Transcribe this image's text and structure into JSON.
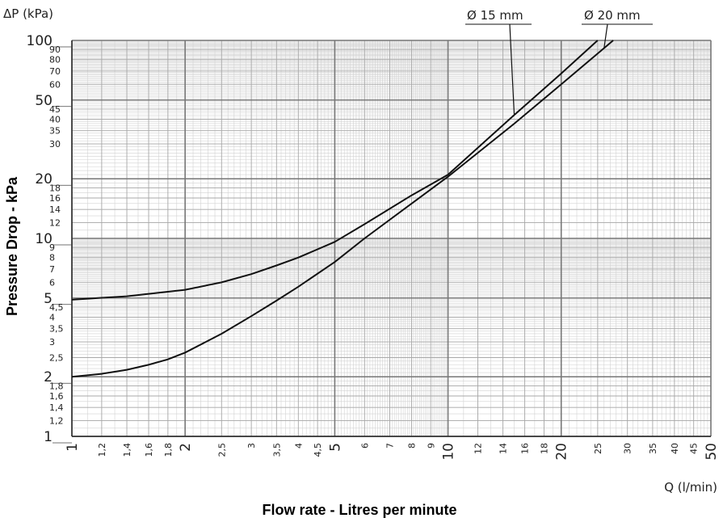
{
  "chart_data": {
    "type": "line",
    "x_scale": "log",
    "y_scale": "log",
    "xlim": [
      1,
      50
    ],
    "ylim": [
      1,
      100
    ],
    "grid": true,
    "x_unit_label": "Q (l/min)",
    "y_unit_label": "ΔP (kPa)",
    "xlabel": "Flow rate - Litres per minute",
    "ylabel": "Pressure Drop - kPa",
    "x_major_ticks": [
      "1",
      "2",
      "5",
      "10",
      "20",
      "50"
    ],
    "x_minor_ticks": [
      "1,2",
      "1,4",
      "1,6",
      "1,8",
      "2,5",
      "3",
      "3,5",
      "4",
      "4,5",
      "6",
      "7",
      "8",
      "9",
      "12",
      "14",
      "16",
      "18",
      "25",
      "30",
      "35",
      "40",
      "45"
    ],
    "y_major_ticks": [
      "1",
      "2",
      "5",
      "10",
      "20",
      "50",
      "100"
    ],
    "y_minor_ticks": [
      "1,2",
      "1,4",
      "1,6",
      "1,8",
      "2,5",
      "3",
      "3,5",
      "4",
      "4,5",
      "6",
      "7",
      "8",
      "9",
      "12",
      "14",
      "16",
      "18",
      "30",
      "35",
      "40",
      "45",
      "60",
      "70",
      "80",
      "90"
    ],
    "series": [
      {
        "name": "Ø 15 mm",
        "color": "#111111",
        "label_anchor_x": 15,
        "points": [
          [
            1,
            4.9
          ],
          [
            1.4,
            5.1
          ],
          [
            2,
            5.5
          ],
          [
            2.5,
            6.0
          ],
          [
            3,
            6.6
          ],
          [
            3.5,
            7.3
          ],
          [
            4,
            8.0
          ],
          [
            5,
            9.6
          ],
          [
            6,
            11.8
          ],
          [
            8,
            16.5
          ],
          [
            10,
            21.0
          ],
          [
            15,
            42
          ],
          [
            20,
            68
          ],
          [
            25,
            100
          ]
        ]
      },
      {
        "name": "Ø 20 mm",
        "color": "#111111",
        "label_anchor_x": 26,
        "points": [
          [
            1,
            2.0
          ],
          [
            1.2,
            2.07
          ],
          [
            1.4,
            2.17
          ],
          [
            1.6,
            2.3
          ],
          [
            1.8,
            2.45
          ],
          [
            2,
            2.65
          ],
          [
            2.5,
            3.3
          ],
          [
            3,
            4.05
          ],
          [
            3.5,
            4.85
          ],
          [
            4,
            5.7
          ],
          [
            5,
            7.6
          ],
          [
            6,
            10.0
          ],
          [
            8,
            15.0
          ],
          [
            10,
            20.5
          ],
          [
            15,
            38
          ],
          [
            20,
            60
          ],
          [
            27.5,
            100
          ]
        ]
      }
    ]
  }
}
